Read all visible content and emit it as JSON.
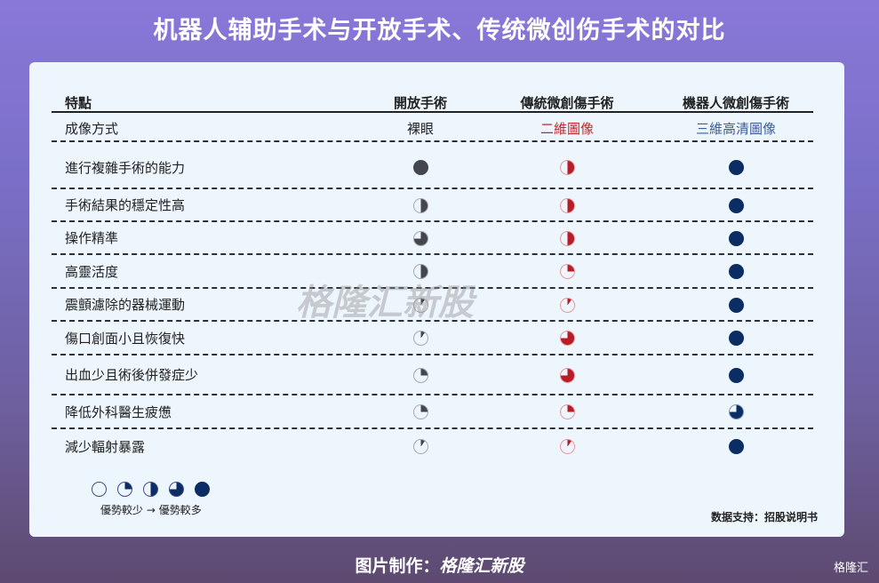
{
  "title": "机器人辅助手术与开放手术、传统微创伤手术的对比",
  "colors": {
    "open": "#44464d",
    "traditional": "#b81c25",
    "robot": "#0b2d63"
  },
  "table": {
    "headers": [
      "特點",
      "開放手術",
      "傳統微創傷手術",
      "機器人微創傷手術"
    ],
    "imaging": {
      "label": "成像方式",
      "values": [
        "裸眼",
        "二維圖像",
        "三維高清圖像"
      ],
      "colors": [
        "#222222",
        "#c0282e",
        "#3b5f9a"
      ]
    },
    "rows": [
      {
        "label": "進行複雜手術的能力",
        "levels": [
          1,
          0.5,
          1
        ]
      },
      {
        "label": "手術結果的穩定性高",
        "levels": [
          0.5,
          0.5,
          1
        ]
      },
      {
        "label": "操作精準",
        "levels": [
          0.75,
          0.5,
          1
        ]
      },
      {
        "label": "高靈活度",
        "levels": [
          0.5,
          0.25,
          1
        ]
      },
      {
        "label": "震顫濾除的器械運動",
        "levels": [
          0.1,
          0.1,
          1
        ]
      },
      {
        "label": "傷口創面小且恢復快",
        "levels": [
          0.1,
          0.75,
          1
        ]
      },
      {
        "label": "出血少且術後併發症少",
        "levels": [
          0.25,
          0.75,
          1
        ]
      },
      {
        "label": "降低外科醫生疲憊",
        "levels": [
          0.25,
          0.25,
          0.75
        ]
      },
      {
        "label": "減少輻射暴露",
        "levels": [
          0.1,
          0.1,
          1
        ]
      }
    ]
  },
  "legend": {
    "levels": [
      0,
      0.25,
      0.5,
      0.75,
      1
    ],
    "text_less": "優勢較少",
    "arrow": "→",
    "text_more": "優勢較多"
  },
  "watermark": "格隆汇新股",
  "source": "数据支持：招股说明书",
  "footer": {
    "label": "图片制作：",
    "brand": "格隆汇新股"
  },
  "logo": "格隆汇"
}
